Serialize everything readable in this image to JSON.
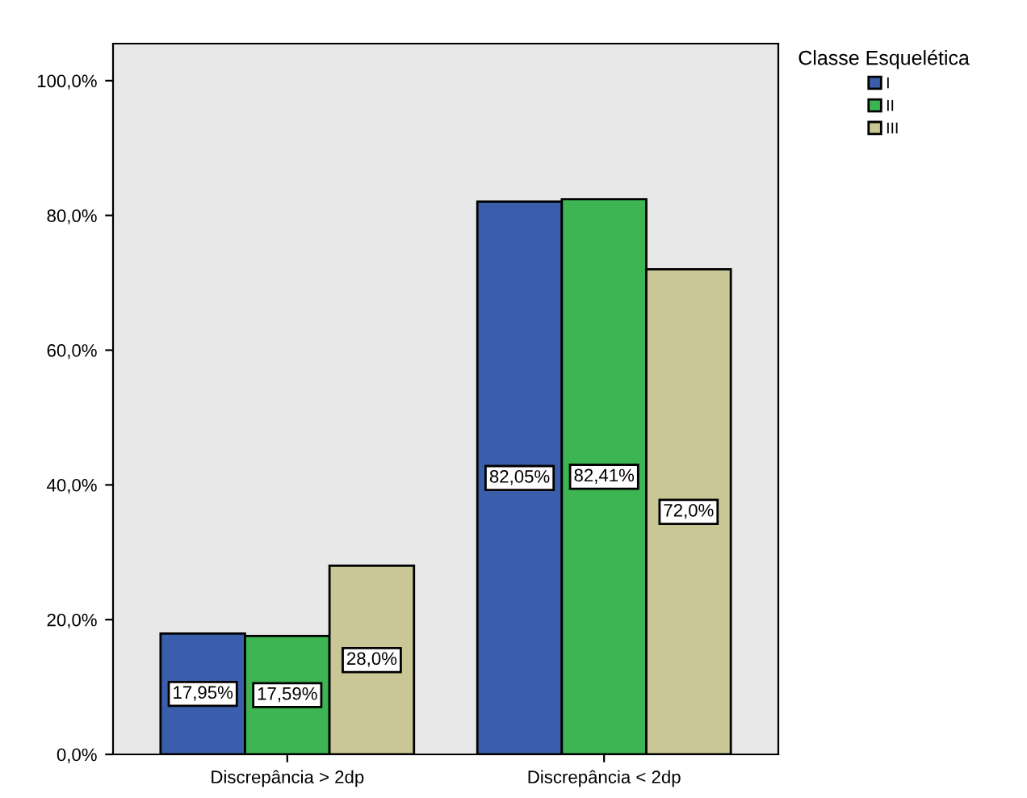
{
  "chart_data": {
    "type": "bar",
    "legend_title": "Classe Esquelética",
    "legend": "top right",
    "categories": [
      "Discrepância > 2dp",
      "Discrepância < 2dp"
    ],
    "series": [
      {
        "name": "I",
        "color": "#3a5eab",
        "values": [
          17.95,
          82.05
        ],
        "value_labels": [
          "17,95%",
          "82,05%"
        ]
      },
      {
        "name": "II",
        "color": "#3db552",
        "values": [
          17.59,
          82.41
        ],
        "value_labels": [
          "17,59%",
          "82,41%"
        ]
      },
      {
        "name": "III",
        "color": "#c9c795",
        "values": [
          28.0,
          72.0
        ],
        "value_labels": [
          "28,0%",
          "72,0%"
        ]
      }
    ],
    "ylim": [
      0,
      105.5
    ],
    "yticks": [
      {
        "value": 0,
        "label": "0,0%"
      },
      {
        "value": 20,
        "label": "20,0%"
      },
      {
        "value": 40,
        "label": "40,0%"
      },
      {
        "value": 60,
        "label": "60,0%"
      },
      {
        "value": 80,
        "label": "80,0%"
      },
      {
        "value": 100,
        "label": "100,0%"
      }
    ],
    "grid": false
  }
}
